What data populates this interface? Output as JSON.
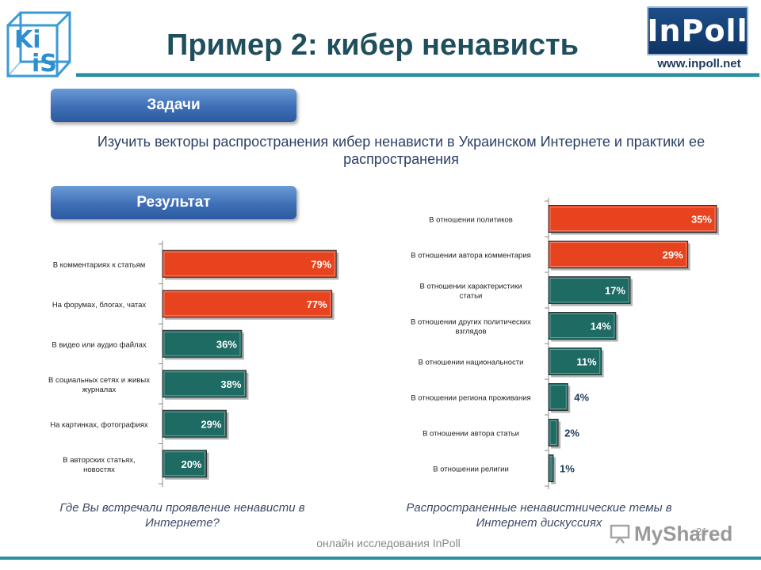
{
  "slide": {
    "title": "Пример 2: кибер ненависть",
    "logo_left_text": "KiiS",
    "logo_right_text": "InPoll",
    "logo_right_url": "www.inpoll.net",
    "tasks_label": "Задачи",
    "tasks_text": "Изучить векторы распространения кибер ненависти в Украинском Интернете и практики ее распространения",
    "result_label": "Результат",
    "footer": "онлайн исследования InPoll",
    "watermark": "MyShared",
    "page_number": "21",
    "colors": {
      "highlight": "#e8431f",
      "normal": "#1d6b63",
      "accent_line": "#2a8fa0",
      "pill": "#3e6fb6"
    }
  },
  "chart_data": [
    {
      "type": "bar",
      "orientation": "horizontal",
      "categories": [
        "В комментариях к статьям",
        "На форумах, блогах, чатах",
        "В видео или аудио файлах",
        "В социальных сетях и живых журналах",
        "На картинках, фотографиях",
        "В авторских статьях, новостях"
      ],
      "values": [
        79,
        77,
        36,
        38,
        29,
        20
      ],
      "labels": [
        "79%",
        "77%",
        "36%",
        "38%",
        "29%",
        "20%"
      ],
      "highlight": [
        true,
        true,
        false,
        false,
        false,
        false
      ],
      "caption": "Где Вы встречали проявление ненависти в Интернете?",
      "xlim": [
        0,
        80
      ]
    },
    {
      "type": "bar",
      "orientation": "horizontal",
      "categories": [
        "В отношении политиков",
        "В отношении автора комментария",
        "В отношении характеристики статьи",
        "В отношении других политических взглядов",
        "В отношении национальности",
        "В отношении региона проживания",
        "В отношении автора статьи",
        "В отношении религии"
      ],
      "values": [
        35,
        29,
        17,
        14,
        11,
        4,
        2,
        1
      ],
      "labels": [
        "35%",
        "29%",
        "17%",
        "14%",
        "11%",
        "4%",
        "2%",
        "1%"
      ],
      "highlight": [
        true,
        true,
        false,
        false,
        false,
        false,
        false,
        false
      ],
      "caption": "Распространенные ненавистнические темы в Интернет дискуссиях",
      "xlim": [
        0,
        35
      ]
    }
  ]
}
